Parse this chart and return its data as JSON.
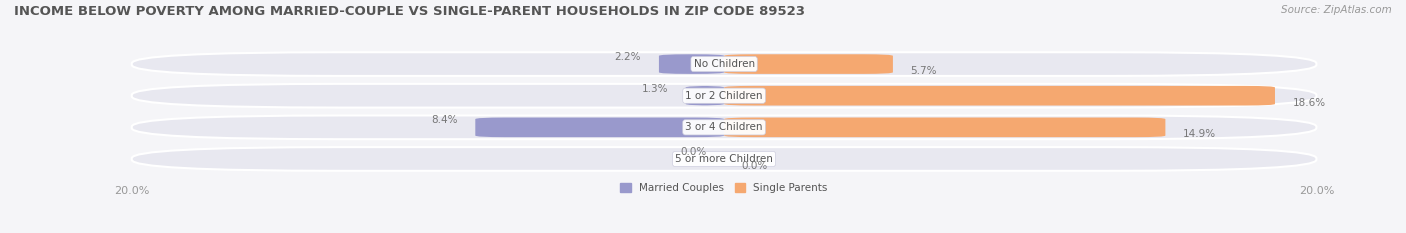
{
  "title": "INCOME BELOW POVERTY AMONG MARRIED-COUPLE VS SINGLE-PARENT HOUSEHOLDS IN ZIP CODE 89523",
  "source": "Source: ZipAtlas.com",
  "categories": [
    "No Children",
    "1 or 2 Children",
    "3 or 4 Children",
    "5 or more Children"
  ],
  "married_values": [
    2.2,
    1.3,
    8.4,
    0.0
  ],
  "single_values": [
    5.7,
    18.6,
    14.9,
    0.0
  ],
  "x_max": 20.0,
  "married_color": "#9999cc",
  "single_color": "#f5a870",
  "row_bg_color": "#e8e8f0",
  "outer_bg_color": "#f5f5f8",
  "title_color": "#555555",
  "label_color": "#555555",
  "axis_label_color": "#999999",
  "value_color": "#777777",
  "legend_labels": [
    "Married Couples",
    "Single Parents"
  ],
  "title_fontsize": 9.5,
  "category_fontsize": 7.5,
  "value_fontsize": 7.5,
  "axis_fontsize": 8,
  "source_fontsize": 7.5
}
